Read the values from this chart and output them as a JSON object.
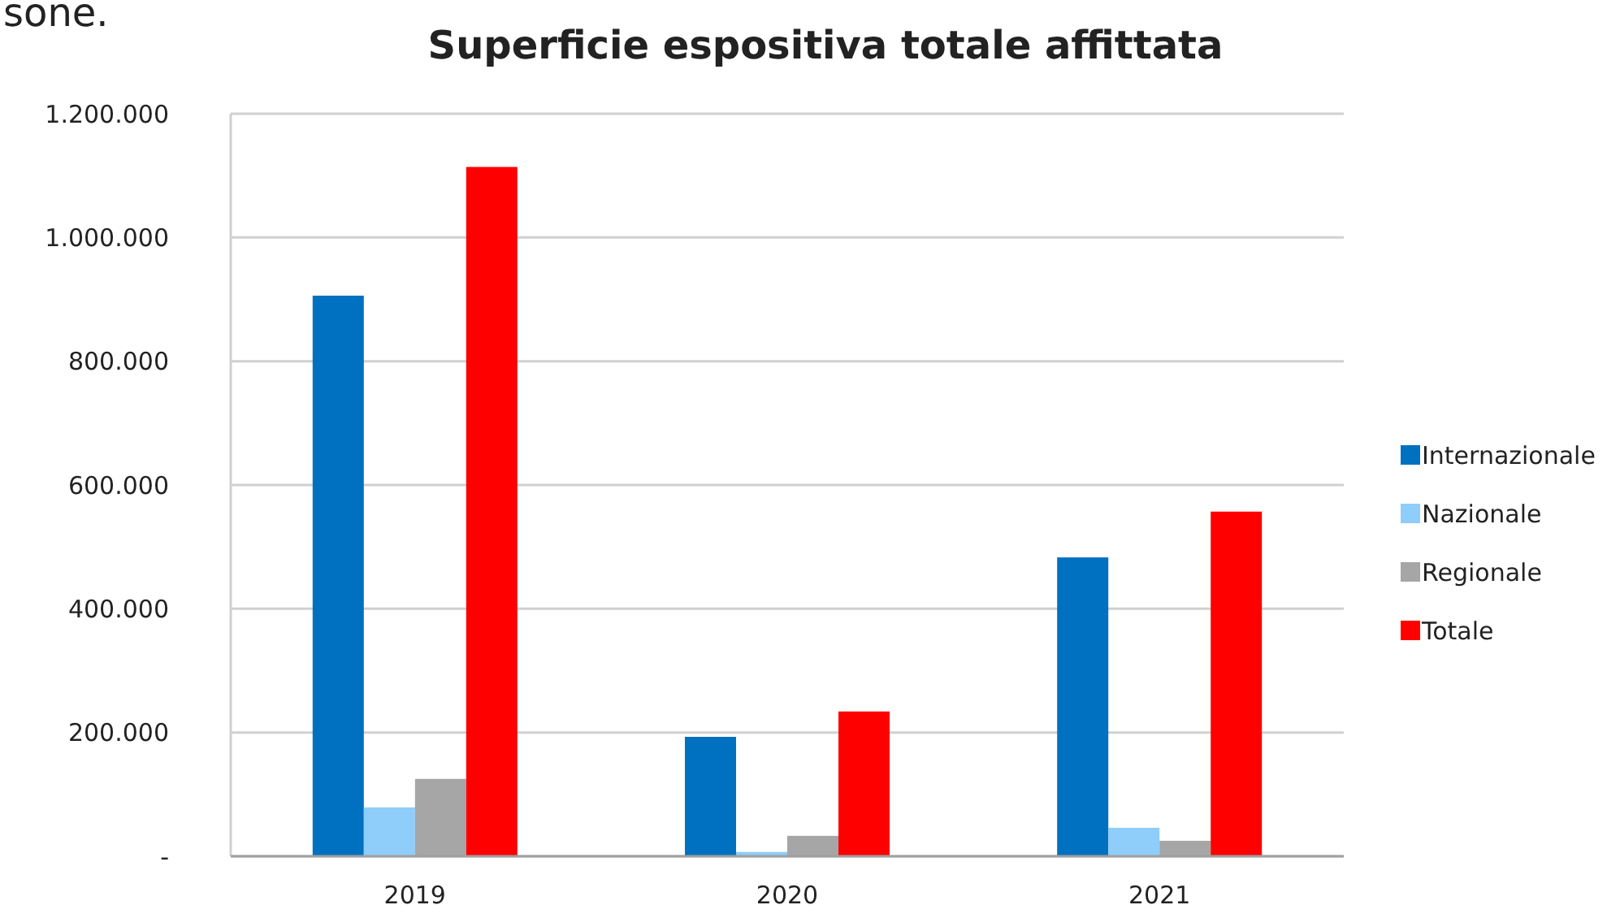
{
  "chart_data": {
    "type": "bar",
    "title": "Superficie espositiva totale affittata",
    "annotations": [
      "sone."
    ],
    "categories": [
      "2019",
      "2020",
      "2021"
    ],
    "series": [
      {
        "name": "Internazionale",
        "color": "#0070c0",
        "values": [
          906000,
          193000,
          483000
        ]
      },
      {
        "name": "Nazionale",
        "color": "#8fcdfb",
        "values": [
          79000,
          7000,
          46000
        ]
      },
      {
        "name": "Regionale",
        "color": "#a6a6a6",
        "values": [
          125000,
          33000,
          25000
        ]
      },
      {
        "name": "Totale",
        "color": "#ff0000",
        "values": [
          1114000,
          234000,
          557000
        ]
      }
    ],
    "ylim": [
      0,
      1200000
    ],
    "yticks": [
      {
        "value": 0,
        "label": "-"
      },
      {
        "value": 200000,
        "label": "200.000"
      },
      {
        "value": 400000,
        "label": "400.000"
      },
      {
        "value": 600000,
        "label": "600.000"
      },
      {
        "value": 800000,
        "label": "800.000"
      },
      {
        "value": 1000000,
        "label": "1.000.000"
      },
      {
        "value": 1200000,
        "label": "1.200.000"
      }
    ],
    "grid": "y",
    "legend": "right"
  }
}
